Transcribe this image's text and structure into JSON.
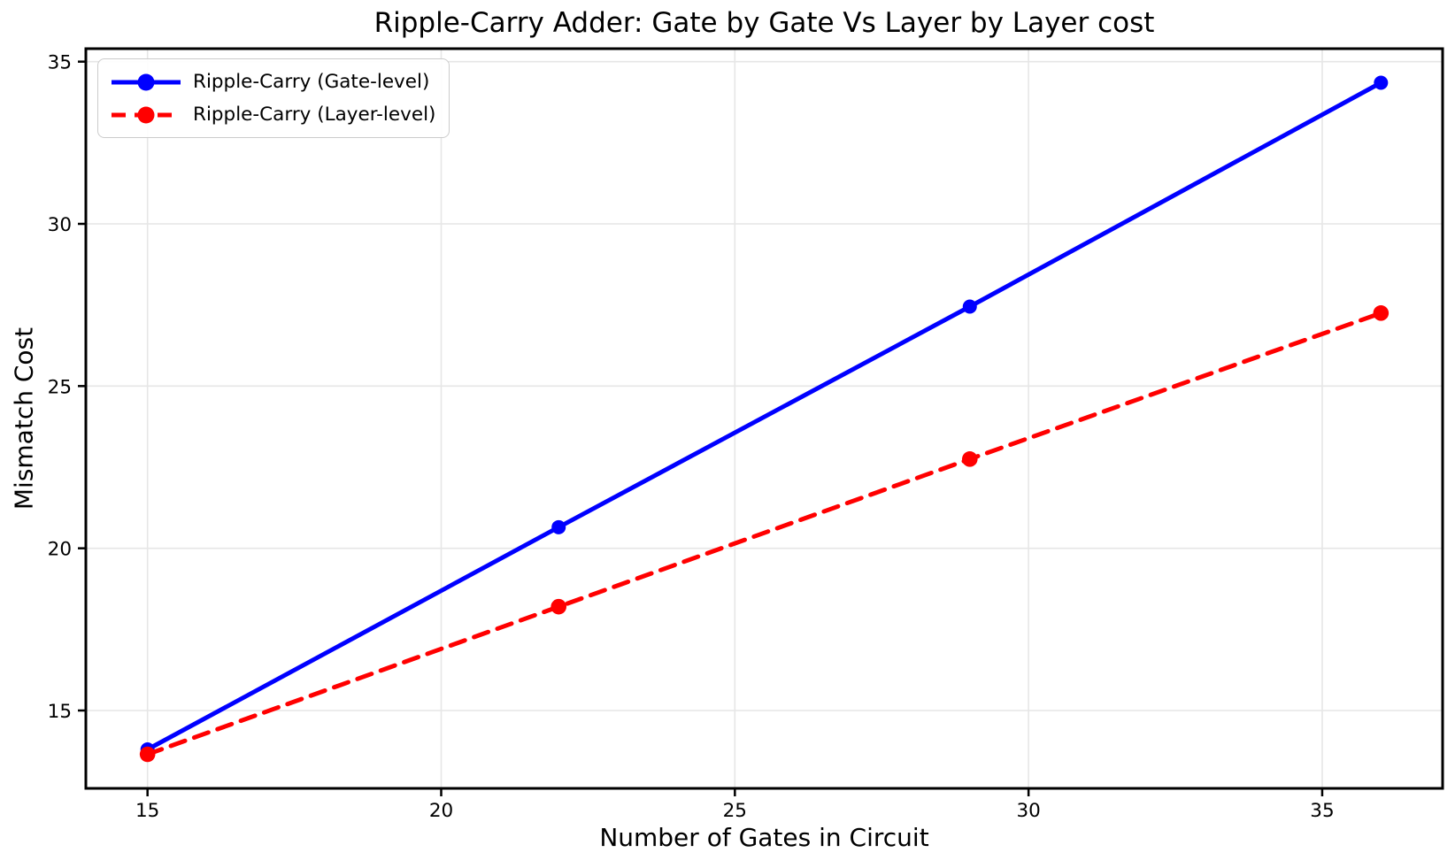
{
  "figure": {
    "background": "#ffffff",
    "text_color": "#000000",
    "grid_color": "#e6e6e6",
    "spine_color": "#000000"
  },
  "chart_data": {
    "type": "line",
    "title": "Ripple-Carry Adder: Gate by Gate Vs Layer by Layer cost",
    "xlabel": "Number of Gates in Circuit",
    "ylabel": "Mismatch Cost",
    "x": [
      15,
      22,
      29,
      36
    ],
    "series": [
      {
        "name": "Ripple-Carry (Gate-level)",
        "color": "#0000ff",
        "line_style": "solid",
        "marker": "circle",
        "values": [
          13.8,
          20.65,
          27.45,
          34.35
        ]
      },
      {
        "name": "Ripple-Carry (Layer-level)",
        "color": "#ff0000",
        "line_style": "dashed",
        "marker": "circle",
        "values": [
          13.65,
          18.2,
          22.75,
          27.25
        ]
      }
    ],
    "xticks": [
      15,
      20,
      25,
      30,
      35
    ],
    "yticks": [
      15,
      20,
      25,
      30,
      35
    ],
    "xlim": [
      13.95,
      37.05
    ],
    "ylim": [
      12.6,
      35.4
    ],
    "grid": true,
    "legend_position": "upper-left"
  }
}
